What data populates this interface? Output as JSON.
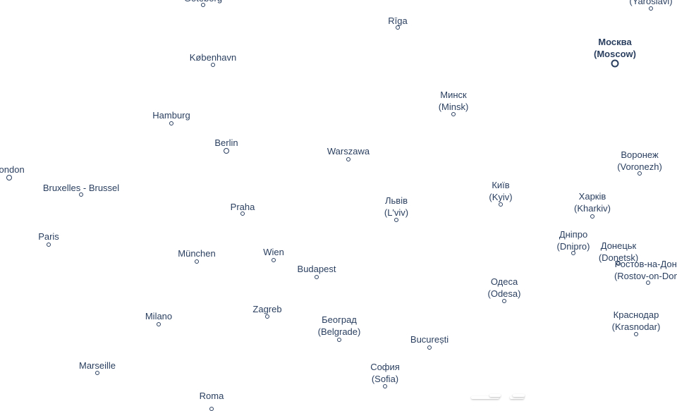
{
  "map": {
    "text_color": "#2a3f5f",
    "cities": [
      {
        "name": "Göteborg"
      },
      {
        "name": "Rīga"
      },
      {
        "name": "København"
      },
      {
        "name": "Москва",
        "alt": "(Moscow)",
        "capital": true
      },
      {
        "name": "",
        "alt": "(Yaroslavl)"
      },
      {
        "name": "Минск",
        "alt": "(Minsk)"
      },
      {
        "name": "Hamburg"
      },
      {
        "name": "Berlin"
      },
      {
        "name": "Warszawa"
      },
      {
        "name": "Воронеж",
        "alt": "(Voronezh)"
      },
      {
        "name": "London"
      },
      {
        "name": "Bruxelles - Brussel"
      },
      {
        "name": "Київ",
        "alt": "(Kyiv)"
      },
      {
        "name": "Харків",
        "alt": "(Kharkiv)"
      },
      {
        "name": "Львів",
        "alt": "(L'viv)"
      },
      {
        "name": "Praha"
      },
      {
        "name": "Paris"
      },
      {
        "name": "Дніпро",
        "alt": "(Dnipro)"
      },
      {
        "name": "Донецьк",
        "alt": "(Donetsk)"
      },
      {
        "name": "Ростов-на-Дону",
        "alt": "(Rostov-on-Don)"
      },
      {
        "name": "München"
      },
      {
        "name": "Wien"
      },
      {
        "name": "Budapest"
      },
      {
        "name": "Одеса",
        "alt": "(Odesa)"
      },
      {
        "name": "Zagreb"
      },
      {
        "name": "Milano"
      },
      {
        "name": "Краснодар",
        "alt": "(Krasnodar)"
      },
      {
        "name": "Београд",
        "alt": "(Belgrade)"
      },
      {
        "name": "București"
      },
      {
        "name": "Marseille"
      },
      {
        "name": "София",
        "alt": "(Sofia)"
      },
      {
        "name": "Roma"
      }
    ]
  }
}
